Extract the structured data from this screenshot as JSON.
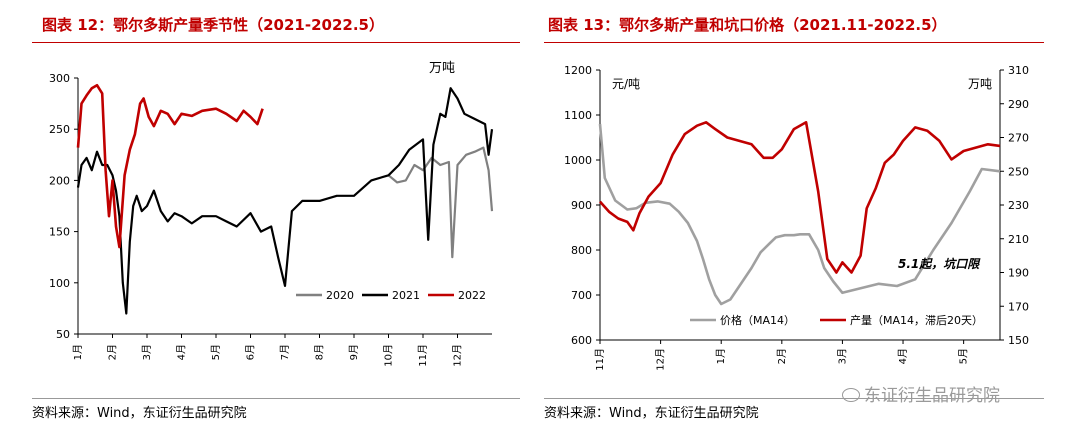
{
  "charts": [
    {
      "title": "图表 12：鄂尔多斯产量季节性（2021-2022.5）",
      "source": "资料来源：Wind，东证衍生品研究院",
      "unit_label": "万吨"
    },
    {
      "title": "图表 13：鄂尔多斯产量和坑口价格（2021.11-2022.5）",
      "source": "资料来源：Wind，东证衍生品研究院",
      "left_unit": "元/吨",
      "right_unit": "万吨",
      "annotation": "5.1起，坑口限"
    }
  ],
  "watermark": "东证衍生品研究院",
  "chart_data": [
    {
      "type": "line",
      "title": "鄂尔多斯产量季节性（2021-2022.5）",
      "ylabel": "万吨",
      "ylim": [
        50,
        300
      ],
      "yticks": [
        50,
        100,
        150,
        200,
        250,
        300
      ],
      "xlim": [
        1,
        13
      ],
      "x_tick_labels": [
        "1月",
        "2月",
        "3月",
        "4月",
        "5月",
        "6月",
        "7月",
        "8月",
        "9月",
        "10月",
        "11月",
        "12月"
      ],
      "legend_position": "bottom-right",
      "series": [
        {
          "name": "2020",
          "color": "#808080",
          "x": [
            10.0,
            10.25,
            10.5,
            10.75,
            11.0,
            11.25,
            11.5,
            11.75,
            11.85,
            12.0,
            12.25,
            12.5,
            12.75,
            12.9,
            13.0
          ],
          "y": [
            205,
            198,
            200,
            215,
            210,
            222,
            215,
            218,
            125,
            215,
            225,
            228,
            232,
            210,
            170
          ]
        },
        {
          "name": "2021",
          "color": "#000000",
          "x": [
            1.0,
            1.1,
            1.25,
            1.4,
            1.55,
            1.7,
            1.85,
            2.0,
            2.1,
            2.2,
            2.3,
            2.4,
            2.5,
            2.6,
            2.7,
            2.85,
            3.0,
            3.2,
            3.4,
            3.6,
            3.8,
            4.0,
            4.3,
            4.6,
            5.0,
            5.3,
            5.6,
            6.0,
            6.3,
            6.6,
            6.8,
            7.0,
            7.2,
            7.5,
            8.0,
            8.5,
            9.0,
            9.5,
            10.0,
            10.3,
            10.6,
            11.0,
            11.15,
            11.3,
            11.5,
            11.65,
            11.8,
            12.0,
            12.2,
            12.5,
            12.8,
            12.9,
            13.0
          ],
          "y": [
            193,
            215,
            222,
            210,
            228,
            215,
            215,
            205,
            190,
            165,
            100,
            70,
            140,
            175,
            185,
            170,
            175,
            190,
            170,
            160,
            168,
            165,
            158,
            165,
            165,
            160,
            155,
            168,
            150,
            155,
            125,
            97,
            170,
            180,
            180,
            185,
            185,
            200,
            205,
            215,
            230,
            240,
            142,
            235,
            265,
            262,
            290,
            280,
            265,
            260,
            255,
            225,
            250
          ]
        },
        {
          "name": "2022",
          "color": "#c00000",
          "x": [
            1.0,
            1.1,
            1.25,
            1.4,
            1.55,
            1.7,
            1.8,
            1.9,
            2.0,
            2.1,
            2.2,
            2.35,
            2.5,
            2.65,
            2.8,
            2.9,
            3.05,
            3.2,
            3.4,
            3.6,
            3.8,
            4.0,
            4.3,
            4.6,
            5.0,
            5.3,
            5.6,
            5.8,
            6.0,
            6.2,
            6.35
          ],
          "y": [
            232,
            275,
            283,
            290,
            293,
            285,
            210,
            165,
            200,
            155,
            135,
            205,
            230,
            245,
            275,
            280,
            262,
            253,
            268,
            265,
            255,
            265,
            263,
            268,
            270,
            265,
            258,
            268,
            262,
            255,
            270
          ]
        }
      ]
    },
    {
      "type": "line",
      "title": "鄂尔多斯产量和坑口价格（2021.11-2022.5）",
      "x_tick_labels": [
        "11月",
        "12月",
        "1月",
        "2月",
        "3月",
        "4月",
        "5月"
      ],
      "xlim": [
        0,
        6.6
      ],
      "left_axis": {
        "label": "元/吨",
        "ylim": [
          600,
          1200
        ],
        "ticks": [
          600,
          700,
          800,
          900,
          1000,
          1100,
          1200
        ]
      },
      "right_axis": {
        "label": "万吨",
        "ylim": [
          150,
          310
        ],
        "ticks": [
          150,
          170,
          190,
          210,
          230,
          250,
          270,
          290,
          310
        ]
      },
      "legend_position": "bottom",
      "series": [
        {
          "name": "价格（MA14）",
          "axis": "left",
          "color": "#a0a0a0",
          "x": [
            0.0,
            0.08,
            0.25,
            0.45,
            0.6,
            0.75,
            0.95,
            1.15,
            1.3,
            1.45,
            1.6,
            1.7,
            1.8,
            1.9,
            2.0,
            2.15,
            2.3,
            2.5,
            2.65,
            2.8,
            2.9,
            3.05,
            3.2,
            3.3,
            3.45,
            3.6,
            3.7,
            3.85,
            4.0,
            4.3,
            4.6,
            4.9,
            5.2,
            5.5,
            5.8,
            6.1,
            6.3,
            6.6
          ],
          "y": [
            1080,
            960,
            910,
            890,
            893,
            905,
            908,
            903,
            885,
            860,
            820,
            780,
            735,
            700,
            680,
            690,
            720,
            760,
            795,
            815,
            828,
            833,
            833,
            835,
            835,
            800,
            760,
            730,
            705,
            715,
            725,
            720,
            735,
            800,
            860,
            930,
            980,
            975
          ]
        },
        {
          "name": "产量（MA14，滞后20天）",
          "axis": "right",
          "color": "#c00000",
          "x": [
            0.0,
            0.15,
            0.3,
            0.45,
            0.55,
            0.65,
            0.8,
            1.0,
            1.2,
            1.4,
            1.6,
            1.75,
            1.9,
            2.1,
            2.3,
            2.5,
            2.7,
            2.85,
            3.0,
            3.2,
            3.4,
            3.6,
            3.75,
            3.9,
            4.0,
            4.15,
            4.3,
            4.4,
            4.55,
            4.7,
            4.85,
            5.0,
            5.2,
            5.4,
            5.6,
            5.8,
            6.0,
            6.2,
            6.4,
            6.6
          ],
          "y": [
            232,
            226,
            222,
            220,
            215,
            225,
            235,
            243,
            260,
            272,
            277,
            279,
            275,
            270,
            268,
            266,
            258,
            258,
            263,
            275,
            279,
            238,
            198,
            190,
            196,
            190,
            200,
            228,
            240,
            255,
            260,
            268,
            276,
            274,
            268,
            257,
            262,
            264,
            266,
            265
          ]
        }
      ]
    }
  ]
}
